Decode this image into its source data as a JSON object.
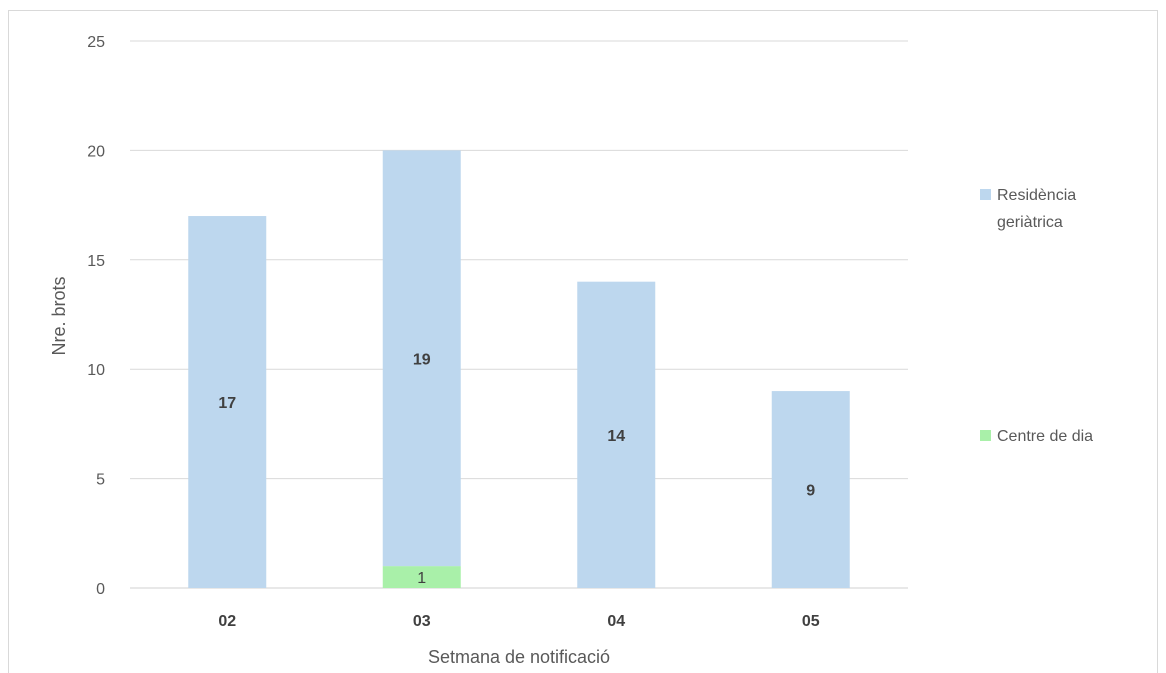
{
  "chart_data": {
    "type": "bar",
    "stacked": true,
    "categories": [
      "02",
      "03",
      "04",
      "05"
    ],
    "series": [
      {
        "name": "Centre de dia",
        "values": [
          0,
          1,
          0,
          0
        ],
        "color": "#a9f0a9"
      },
      {
        "name": "Residència geriàtrica",
        "values": [
          17,
          19,
          14,
          9
        ],
        "color": "#bdd7ee"
      }
    ],
    "xlabel": "Setmana de notificació",
    "ylabel": "Nre. brots",
    "ylim": [
      0,
      25
    ],
    "yticks": [
      0,
      5,
      10,
      15,
      20,
      25
    ],
    "grid": true,
    "legend": {
      "position": "right",
      "entries": [
        {
          "lines": [
            "Residència",
            "geriàtrica"
          ],
          "color": "#bdd7ee"
        },
        {
          "lines": [
            "Centre de dia"
          ],
          "color": "#a9f0a9"
        }
      ]
    }
  }
}
